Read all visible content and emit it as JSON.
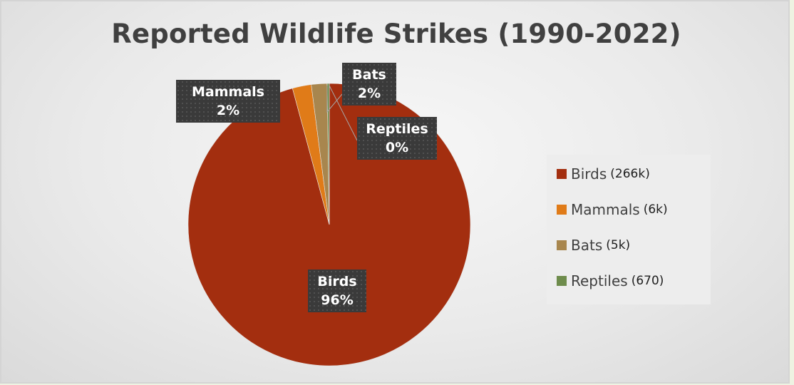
{
  "chart_data": {
    "type": "pie",
    "title": "Reported Wildlife Strikes (1990-2022)",
    "slices": [
      {
        "name": "Birds",
        "value": 266000,
        "count_label": "(266k)",
        "percent_label": "96%",
        "color": "#a32e0f"
      },
      {
        "name": "Mammals",
        "value": 6000,
        "count_label": "(6k)",
        "percent_label": "2%",
        "color": "#e07b18"
      },
      {
        "name": "Bats",
        "value": 5000,
        "count_label": "(5k)",
        "percent_label": "2%",
        "color": "#a8864e"
      },
      {
        "name": "Reptiles",
        "value": 670,
        "count_label": "(670)",
        "percent_label": "0%",
        "color": "#6e8c4c"
      }
    ],
    "legend_position": "right"
  }
}
